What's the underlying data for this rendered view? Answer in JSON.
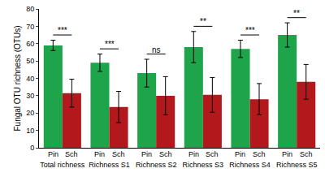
{
  "chart_data": {
    "type": "bar",
    "y_label": "Fungal OTU richness (OTUs)",
    "categories": [
      "Total richness",
      "Richness S1",
      "Richness S2",
      "Richness S3",
      "Richness S4",
      "Richness S5"
    ],
    "series": [
      {
        "name": "Pin",
        "color": "#1ea54b",
        "values": [
          59,
          49,
          43,
          58,
          57,
          65
        ],
        "errors": [
          3,
          5,
          8,
          9,
          5,
          7
        ]
      },
      {
        "name": "Sch",
        "color": "#b3191c",
        "values": [
          31.5,
          23.5,
          30,
          30.5,
          28,
          38
        ],
        "errors": [
          8,
          9,
          11,
          10,
          9,
          10
        ]
      }
    ],
    "annotations": [
      "***",
      "***",
      "ns",
      "**",
      "***",
      "**"
    ],
    "ylim": [
      0,
      80
    ],
    "yticks": [
      0,
      10,
      20,
      30,
      40,
      50,
      60,
      70,
      80
    ],
    "grid": false
  }
}
